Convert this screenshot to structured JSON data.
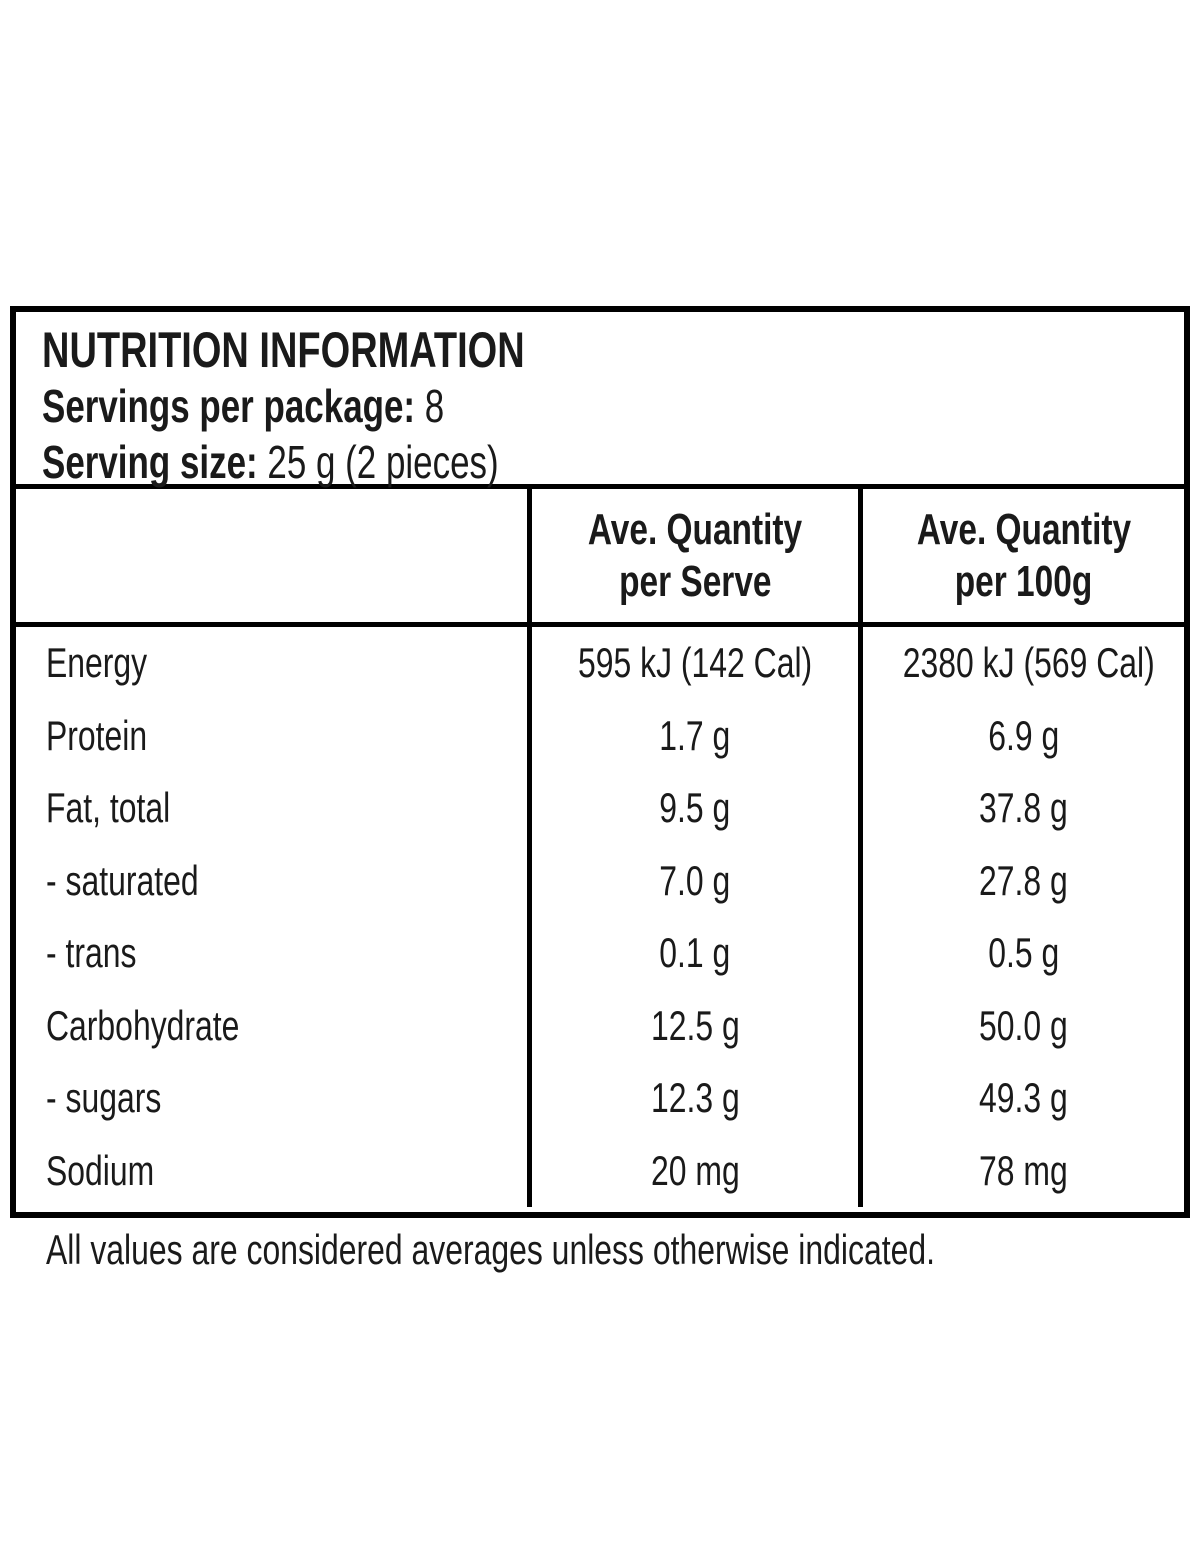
{
  "title_block": {
    "title": "NUTRITION INFORMATION",
    "servings_label": "Servings per package:",
    "servings_value": "8",
    "serving_size_label": "Serving size:",
    "serving_size_value": "25 g (2 pieces)"
  },
  "table": {
    "col_serve_header": {
      "line1": "Ave. Quantity",
      "line2": "per Serve"
    },
    "col_100g_header": {
      "line1": "Ave. Quantity",
      "line2": "per 100g"
    },
    "rows": [
      {
        "label": "Energy",
        "per_serve": "595 kJ (142 Cal)",
        "per_100g": "2380 kJ (569 Cal)"
      },
      {
        "label": "Protein",
        "per_serve": "1.7 g",
        "per_100g": "6.9 g"
      },
      {
        "label": "Fat, total",
        "per_serve": "9.5 g",
        "per_100g": "37.8 g"
      },
      {
        "label": "- saturated",
        "per_serve": "7.0 g",
        "per_100g": "27.8 g"
      },
      {
        "label": "- trans",
        "per_serve": "0.1 g",
        "per_100g": "0.5 g"
      },
      {
        "label": "Carbohydrate",
        "per_serve": "12.5 g",
        "per_100g": "50.0 g"
      },
      {
        "label": "- sugars",
        "per_serve": "12.3 g",
        "per_100g": "49.3 g"
      },
      {
        "label": "Sodium",
        "per_serve": "20 mg",
        "per_100g": "78 mg"
      }
    ]
  },
  "footer": {
    "note": "All values are considered averages unless otherwise indicated."
  },
  "colors": {
    "text": "#1a1a1a",
    "border": "#000000",
    "background": "#ffffff"
  }
}
